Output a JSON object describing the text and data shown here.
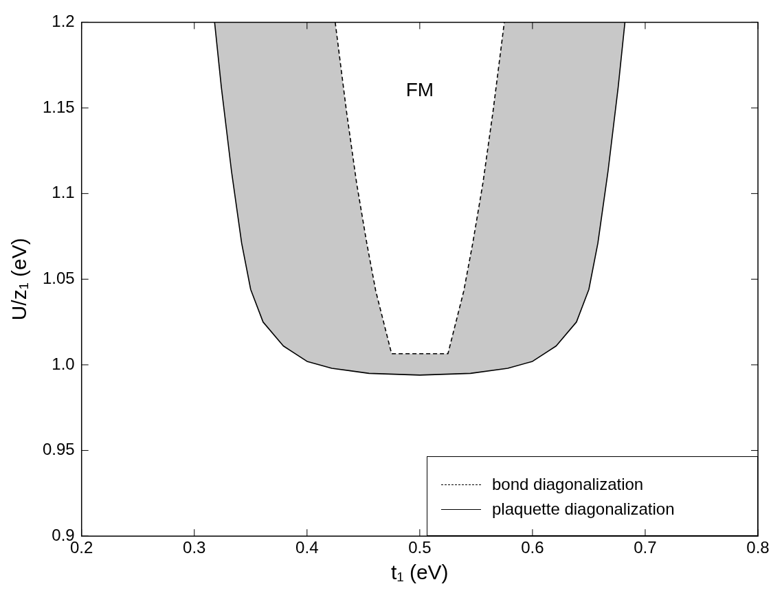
{
  "chart_data": {
    "type": "line",
    "xlabel": "t₁ (eV)",
    "ylabel": "U/z₁ (eV)",
    "xlim": [
      0.2,
      0.8
    ],
    "ylim": [
      0.9,
      1.2
    ],
    "xticks": [
      0.2,
      0.3,
      0.4,
      0.5,
      0.6,
      0.7,
      0.8
    ],
    "yticks": [
      0.9,
      0.95,
      {
        "value": 1,
        "label": "1.0"
      },
      1.05,
      1.1,
      1.15,
      1.2
    ],
    "legend": "bottom right",
    "grid": false,
    "marker": "none",
    "annotations": [
      "FM"
    ],
    "series": [
      {
        "name": "bond diagonalization",
        "color": "#000000",
        "line_style": "dashed",
        "x": [
          0.425,
          0.435,
          0.444,
          0.453,
          0.461,
          0.475,
          0.525,
          0.539,
          0.547,
          0.556,
          0.565,
          0.575
        ],
        "values": [
          1.2,
          1.148,
          1.106,
          1.071,
          1.043,
          1.0065,
          1.0065,
          1.043,
          1.071,
          1.106,
          1.148,
          1.2
        ]
      },
      {
        "name": "plaquette diagonalization",
        "color": "#000000",
        "line_style": "solid",
        "x": [
          0.318,
          0.324,
          0.333,
          0.342,
          0.35,
          0.361,
          0.379,
          0.4,
          0.422,
          0.455,
          0.5,
          0.545,
          0.578,
          0.6,
          0.621,
          0.639,
          0.65,
          0.658,
          0.667,
          0.676,
          0.682
        ],
        "values": [
          1.2,
          1.162,
          1.113,
          1.071,
          1.044,
          1.025,
          1.011,
          1.002,
          0.998,
          0.995,
          0.994,
          0.995,
          0.998,
          1.002,
          1.011,
          1.025,
          1.044,
          1.071,
          1.113,
          1.162,
          1.2
        ]
      }
    ]
  }
}
